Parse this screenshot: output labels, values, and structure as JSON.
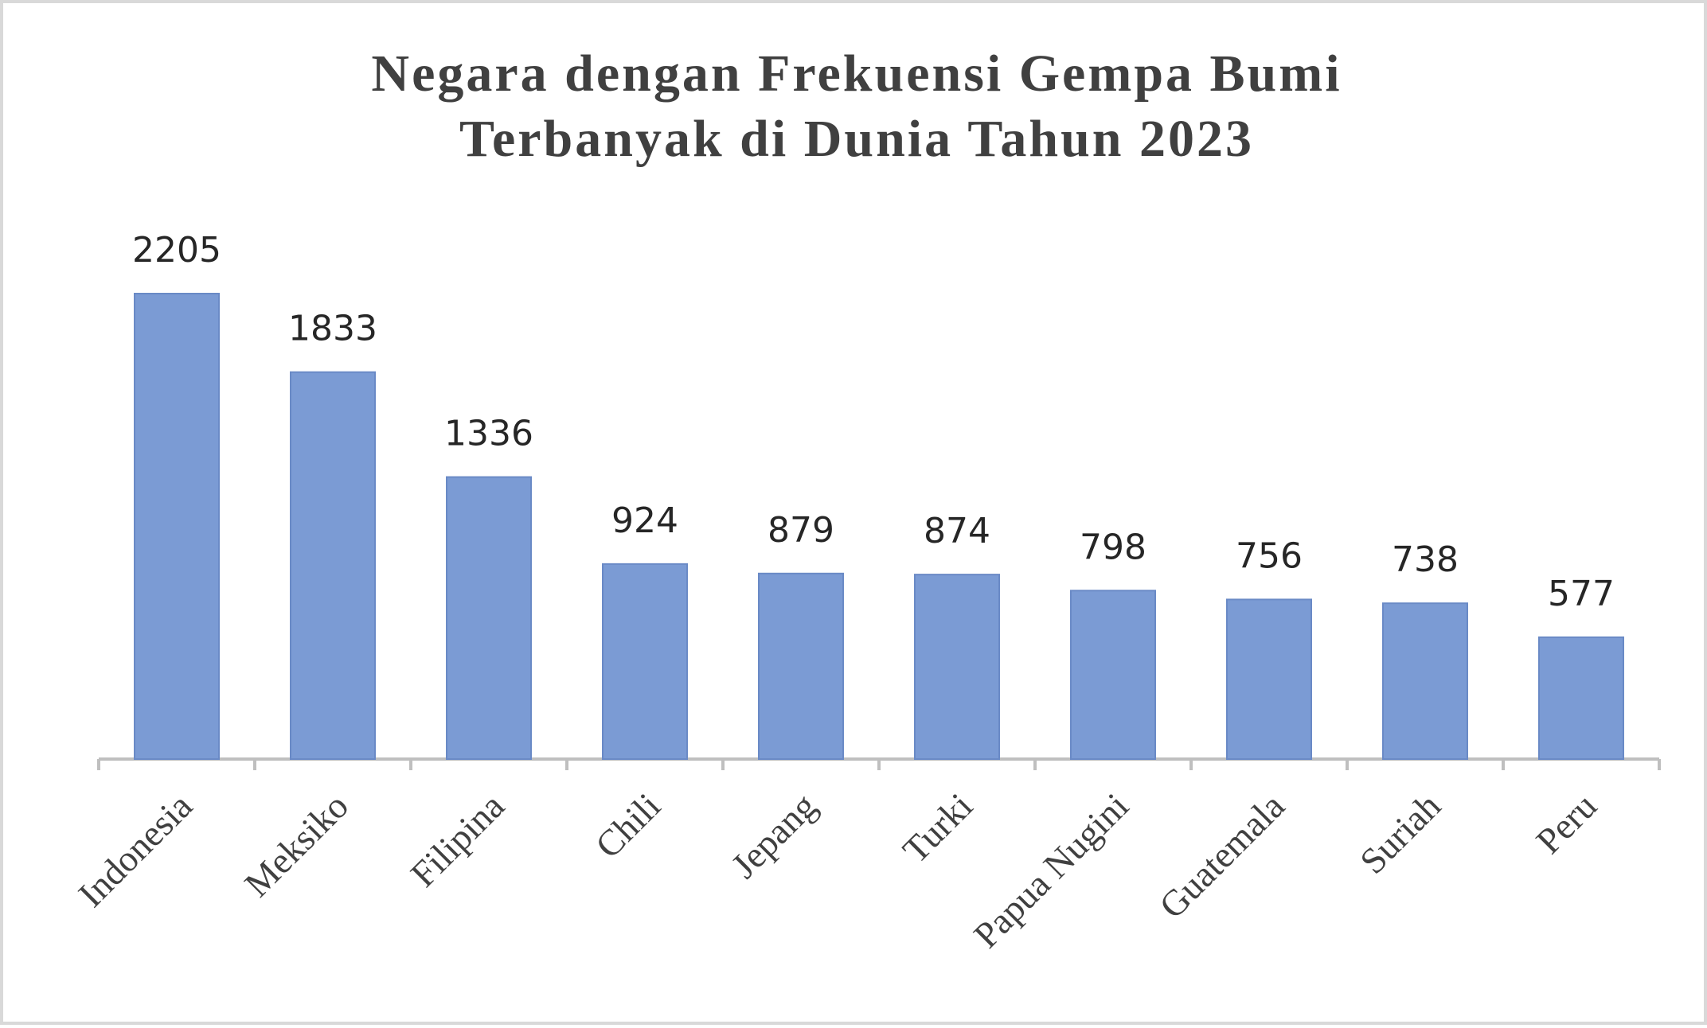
{
  "chart_data": {
    "type": "bar",
    "title_lines": [
      "Negara dengan Frekuensi Gempa Bumi",
      "Terbanyak di Dunia Tahun 2023"
    ],
    "categories": [
      "Indonesia",
      "Meksiko",
      "Filipina",
      "Chili",
      "Jepang",
      "Turki",
      "Papua Nugini",
      "Guatemala",
      "Suriah",
      "Peru"
    ],
    "values": [
      2205,
      1833,
      1336,
      924,
      879,
      874,
      798,
      756,
      738,
      577
    ],
    "ylim": [
      0,
      2205
    ],
    "data_labels": true,
    "grid": false,
    "legend": "none",
    "bar_color": "#7b9bd4",
    "bar_edge_color": "#6a8ac6",
    "axis_color": "#bfbfbf"
  }
}
